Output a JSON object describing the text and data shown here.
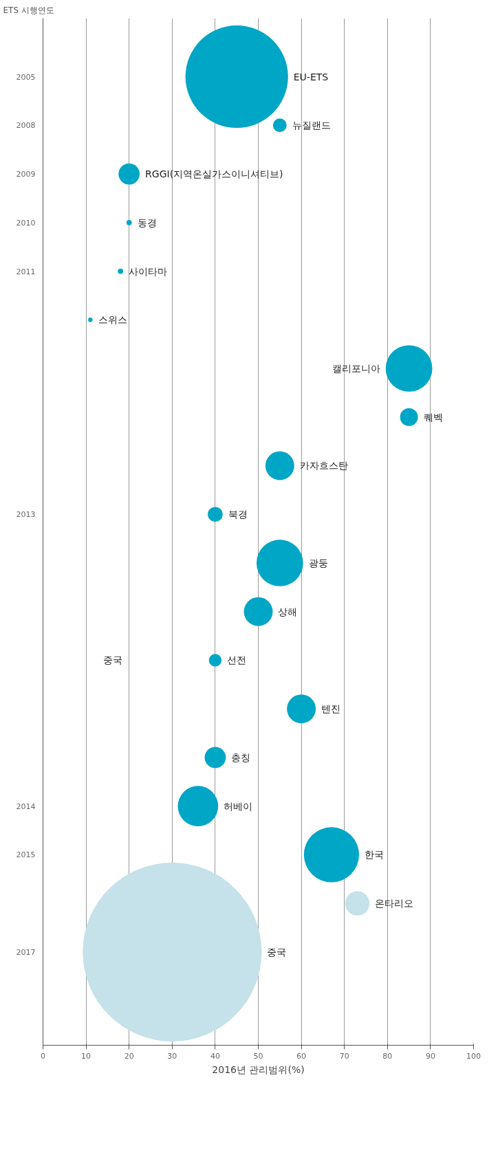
{
  "chart_data": {
    "type": "bubble",
    "orientation": "horizontal",
    "xlabel": "2016년 관리범위(%)",
    "categories": [
      "2005",
      "2008",
      "2009",
      "2010",
      "2011",
      null,
      null,
      null,
      null,
      "2013",
      null,
      null,
      null,
      null,
      null,
      "2014",
      "2015",
      null,
      "2017"
    ],
    "xlim": [
      0,
      100
    ],
    "xticks": [
      0,
      10,
      20,
      30,
      40,
      50,
      60,
      70,
      80,
      90,
      100
    ],
    "grid": "x",
    "annotations": [
      "ETS 시행연도",
      "중국"
    ],
    "series": [
      {
        "name": "EU-ETS",
        "color": "#00a6c6",
        "values": [
          45,
          null,
          null,
          null,
          null,
          null,
          null,
          null,
          null,
          null,
          null,
          null,
          null,
          null,
          null,
          null,
          null,
          null,
          null
        ],
        "sizes": [
          0.329,
          null,
          null,
          null,
          null,
          null,
          null,
          null,
          null,
          null,
          null,
          null,
          null,
          null,
          null,
          null,
          null,
          null,
          null
        ]
      },
      {
        "name": "뉴질랜드",
        "color": "#00a6c6",
        "values": [
          null,
          55,
          null,
          null,
          null,
          null,
          null,
          null,
          null,
          null,
          null,
          null,
          null,
          null,
          null,
          null,
          null,
          null,
          null
        ],
        "sizes": [
          null,
          0.0059,
          null,
          null,
          null,
          null,
          null,
          null,
          null,
          null,
          null,
          null,
          null,
          null,
          null,
          null,
          null,
          null,
          null
        ]
      },
      {
        "name": "RGGI(지역온실가스이니셔티브)",
        "color": "#00a6c6",
        "values": [
          null,
          null,
          20,
          null,
          null,
          null,
          null,
          null,
          null,
          null,
          null,
          null,
          null,
          null,
          null,
          null,
          null,
          null,
          null
        ],
        "sizes": [
          null,
          null,
          0.014,
          null,
          null,
          null,
          null,
          null,
          null,
          null,
          null,
          null,
          null,
          null,
          null,
          null,
          null,
          null,
          null
        ]
      },
      {
        "name": "동경",
        "color": "#00a6c6",
        "values": [
          null,
          null,
          null,
          20,
          null,
          null,
          null,
          null,
          null,
          null,
          null,
          null,
          null,
          null,
          null,
          null,
          null,
          null,
          null
        ],
        "sizes": [
          null,
          null,
          null,
          0.0009,
          null,
          null,
          null,
          null,
          null,
          null,
          null,
          null,
          null,
          null,
          null,
          null,
          null,
          null,
          null
        ]
      },
      {
        "name": "사이타마",
        "color": "#00a6c6",
        "values": [
          null,
          null,
          null,
          null,
          18,
          null,
          null,
          null,
          null,
          null,
          null,
          null,
          null,
          null,
          null,
          null,
          null,
          null,
          null
        ],
        "sizes": [
          null,
          null,
          null,
          null,
          0.0009,
          null,
          null,
          null,
          null,
          null,
          null,
          null,
          null,
          null,
          null,
          null,
          null,
          null,
          null
        ]
      },
      {
        "name": "스위스",
        "color": "#00a6c6",
        "values": [
          null,
          null,
          null,
          null,
          null,
          11,
          null,
          null,
          null,
          null,
          null,
          null,
          null,
          null,
          null,
          null,
          null,
          null,
          null
        ],
        "sizes": [
          null,
          null,
          null,
          null,
          null,
          0.0006,
          null,
          null,
          null,
          null,
          null,
          null,
          null,
          null,
          null,
          null,
          null,
          null,
          null
        ]
      },
      {
        "name": "캘리포니아",
        "color": "#00a6c6",
        "values": [
          null,
          null,
          null,
          null,
          null,
          null,
          85,
          null,
          null,
          null,
          null,
          null,
          null,
          null,
          null,
          null,
          null,
          null,
          null
        ],
        "sizes": [
          null,
          null,
          null,
          null,
          null,
          null,
          0.068,
          null,
          null,
          null,
          null,
          null,
          null,
          null,
          null,
          null,
          null,
          null,
          null
        ]
      },
      {
        "name": "퀘벡",
        "color": "#00a6c6",
        "values": [
          null,
          null,
          null,
          null,
          null,
          null,
          null,
          85,
          null,
          null,
          null,
          null,
          null,
          null,
          null,
          null,
          null,
          null,
          null
        ],
        "sizes": [
          null,
          null,
          null,
          null,
          null,
          null,
          null,
          0.01,
          null,
          null,
          null,
          null,
          null,
          null,
          null,
          null,
          null,
          null,
          null
        ]
      },
      {
        "name": "카자흐스탄",
        "color": "#00a6c6",
        "values": [
          null,
          null,
          null,
          null,
          null,
          null,
          null,
          null,
          55,
          null,
          null,
          null,
          null,
          null,
          null,
          null,
          null,
          null,
          null
        ],
        "sizes": [
          null,
          null,
          null,
          null,
          null,
          null,
          null,
          null,
          0.026,
          null,
          null,
          null,
          null,
          null,
          null,
          null,
          null,
          null,
          null
        ]
      },
      {
        "name": "북경",
        "color": "#00a6c6",
        "values": [
          null,
          null,
          null,
          null,
          null,
          null,
          null,
          null,
          null,
          40,
          null,
          null,
          null,
          null,
          null,
          null,
          null,
          null,
          null
        ],
        "sizes": [
          null,
          null,
          null,
          null,
          null,
          null,
          null,
          null,
          null,
          0.0069,
          null,
          null,
          null,
          null,
          null,
          null,
          null,
          null,
          null
        ]
      },
      {
        "name": "광둥",
        "color": "#00a6c6",
        "values": [
          null,
          null,
          null,
          null,
          null,
          null,
          null,
          null,
          null,
          null,
          55,
          null,
          null,
          null,
          null,
          null,
          null,
          null,
          null
        ],
        "sizes": [
          null,
          null,
          null,
          null,
          null,
          null,
          null,
          null,
          null,
          null,
          0.068,
          null,
          null,
          null,
          null,
          null,
          null,
          null,
          null
        ]
      },
      {
        "name": "상해",
        "color": "#00a6c6",
        "values": [
          null,
          null,
          null,
          null,
          null,
          null,
          null,
          null,
          null,
          null,
          null,
          50,
          null,
          null,
          null,
          null,
          null,
          null,
          null
        ],
        "sizes": [
          null,
          null,
          null,
          null,
          null,
          null,
          null,
          null,
          null,
          null,
          null,
          0.026,
          null,
          null,
          null,
          null,
          null,
          null,
          null
        ]
      },
      {
        "name": "선전",
        "color": "#00a6c6",
        "values": [
          null,
          null,
          null,
          null,
          null,
          null,
          null,
          null,
          null,
          null,
          null,
          null,
          40,
          null,
          null,
          null,
          null,
          null,
          null
        ],
        "sizes": [
          null,
          null,
          null,
          null,
          null,
          null,
          null,
          null,
          null,
          null,
          null,
          null,
          0.005,
          null,
          null,
          null,
          null,
          null,
          null
        ]
      },
      {
        "name": "텐진",
        "color": "#00a6c6",
        "values": [
          null,
          null,
          null,
          null,
          null,
          null,
          null,
          null,
          null,
          null,
          null,
          null,
          null,
          60,
          null,
          null,
          null,
          null,
          null
        ],
        "sizes": [
          null,
          null,
          null,
          null,
          null,
          null,
          null,
          null,
          null,
          null,
          null,
          null,
          null,
          0.026,
          null,
          null,
          null,
          null,
          null
        ]
      },
      {
        "name": "충칭",
        "color": "#00a6c6",
        "values": [
          null,
          null,
          null,
          null,
          null,
          null,
          null,
          null,
          null,
          null,
          null,
          null,
          null,
          null,
          40,
          null,
          null,
          null,
          null
        ],
        "sizes": [
          null,
          null,
          null,
          null,
          null,
          null,
          null,
          null,
          null,
          null,
          null,
          null,
          null,
          null,
          0.014,
          null,
          null,
          null,
          null
        ]
      },
      {
        "name": "허베이",
        "color": "#00a6c6",
        "values": [
          null,
          null,
          null,
          null,
          null,
          null,
          null,
          null,
          null,
          null,
          null,
          null,
          null,
          null,
          null,
          36,
          null,
          null,
          null
        ],
        "sizes": [
          null,
          null,
          null,
          null,
          null,
          null,
          null,
          null,
          null,
          null,
          null,
          null,
          null,
          null,
          null,
          0.051,
          null,
          null,
          null
        ]
      },
      {
        "name": "한국",
        "color": "#00a6c6",
        "values": [
          null,
          null,
          null,
          null,
          null,
          null,
          null,
          null,
          null,
          null,
          null,
          null,
          null,
          null,
          null,
          null,
          67,
          null,
          null
        ],
        "sizes": [
          null,
          null,
          null,
          null,
          null,
          null,
          null,
          null,
          null,
          null,
          null,
          null,
          null,
          null,
          null,
          null,
          0.095,
          null,
          null
        ]
      },
      {
        "name": "온타리오",
        "color": "#c5e1ea",
        "values": [
          null,
          null,
          null,
          null,
          null,
          null,
          null,
          null,
          null,
          null,
          null,
          null,
          null,
          null,
          null,
          null,
          null,
          73,
          null
        ],
        "sizes": [
          null,
          null,
          null,
          null,
          null,
          null,
          null,
          null,
          null,
          null,
          null,
          null,
          null,
          null,
          null,
          null,
          null,
          0.0185,
          null
        ]
      },
      {
        "name": "중국",
        "color": "#c5e1ea",
        "values": [
          null,
          null,
          null,
          null,
          null,
          null,
          null,
          null,
          null,
          null,
          null,
          null,
          null,
          null,
          null,
          null,
          null,
          null,
          30
        ],
        "sizes": [
          null,
          null,
          null,
          null,
          null,
          null,
          null,
          null,
          null,
          null,
          null,
          null,
          null,
          null,
          null,
          null,
          null,
          null,
          1
        ]
      }
    ]
  }
}
